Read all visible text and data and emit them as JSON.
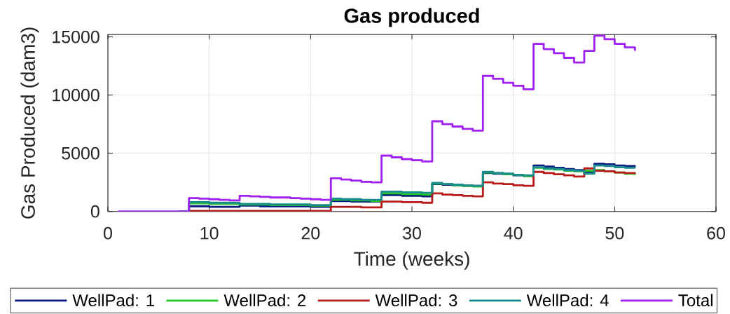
{
  "chart_data": {
    "type": "step",
    "title": "Gas produced",
    "xlabel": "Time (weeks)",
    "ylabel": "Gas Produced (dam3)",
    "x": [
      1,
      2,
      3,
      4,
      5,
      6,
      7,
      8,
      9,
      10,
      11,
      12,
      13,
      14,
      15,
      16,
      17,
      18,
      19,
      20,
      21,
      22,
      23,
      24,
      25,
      26,
      27,
      28,
      29,
      30,
      31,
      32,
      33,
      34,
      35,
      36,
      37,
      38,
      39,
      40,
      41,
      42,
      43,
      44,
      45,
      46,
      47,
      48,
      49,
      50,
      51,
      52
    ],
    "series": [
      {
        "name": "WellPad: 1",
        "color": "#0a1a80",
        "values": [
          null,
          null,
          null,
          null,
          null,
          null,
          0,
          450,
          450,
          400,
          400,
          400,
          500,
          500,
          450,
          450,
          450,
          450,
          450,
          400,
          400,
          900,
          900,
          850,
          850,
          850,
          1400,
          1400,
          1350,
          1350,
          1300,
          2350,
          2300,
          2250,
          2200,
          2200,
          3300,
          3250,
          3200,
          3100,
          3050,
          3950,
          3850,
          3750,
          3650,
          3550,
          3350,
          4100,
          4050,
          3950,
          3900,
          3850
        ]
      },
      {
        "name": "WellPad: 2",
        "color": "#22c822",
        "values": [
          null,
          null,
          null,
          null,
          null,
          null,
          0,
          700,
          700,
          650,
          650,
          650,
          600,
          600,
          600,
          550,
          550,
          550,
          550,
          500,
          500,
          1000,
          1000,
          950,
          950,
          900,
          1550,
          1550,
          1500,
          1500,
          1450,
          2400,
          2350,
          2250,
          2200,
          2150,
          3350,
          3300,
          3200,
          3150,
          3050,
          3750,
          3650,
          3600,
          3500,
          3450,
          3500,
          3550,
          3450,
          3350,
          3250,
          3150
        ]
      },
      {
        "name": "WellPad: 3",
        "color": "#b81a1a",
        "values": [
          null,
          null,
          null,
          null,
          null,
          null,
          0,
          50,
          50,
          50,
          50,
          50,
          50,
          50,
          50,
          50,
          50,
          50,
          50,
          50,
          50,
          400,
          400,
          400,
          350,
          350,
          850,
          850,
          800,
          800,
          750,
          1550,
          1450,
          1400,
          1350,
          1300,
          2500,
          2400,
          2350,
          2250,
          2200,
          3400,
          3300,
          3200,
          3100,
          3000,
          3700,
          3500,
          3450,
          3350,
          3300,
          3250
        ]
      },
      {
        "name": "WellPad: 4",
        "color": "#1a8c8c",
        "values": [
          null,
          null,
          null,
          null,
          null,
          null,
          0,
          800,
          800,
          750,
          750,
          750,
          650,
          650,
          650,
          600,
          600,
          600,
          600,
          550,
          550,
          1100,
          1050,
          1050,
          1000,
          1000,
          1700,
          1700,
          1650,
          1650,
          1600,
          2450,
          2350,
          2300,
          2250,
          2200,
          3400,
          3300,
          3250,
          3150,
          3100,
          3800,
          3700,
          3650,
          3550,
          3500,
          3250,
          3950,
          3900,
          3800,
          3750,
          3700
        ]
      },
      {
        "name": "Total",
        "color": "#a020f0",
        "values": [
          0,
          0,
          0,
          0,
          0,
          0,
          0,
          1150,
          1100,
          1050,
          1000,
          950,
          1350,
          1300,
          1250,
          1200,
          1200,
          1150,
          1100,
          1050,
          1000,
          2850,
          2750,
          2650,
          2550,
          2500,
          4800,
          4650,
          4500,
          4400,
          4300,
          7750,
          7500,
          7300,
          7100,
          6950,
          11650,
          11400,
          11050,
          10800,
          10500,
          14400,
          13950,
          13600,
          13200,
          12800,
          13800,
          15100,
          14800,
          14400,
          14100,
          13800
        ]
      }
    ],
    "xlim": [
      0,
      60
    ],
    "ylim": [
      0,
      15200
    ],
    "xticks": [
      0,
      10,
      20,
      30,
      40,
      50,
      60
    ],
    "yticks": [
      0,
      5000,
      10000,
      15000
    ],
    "grid": true,
    "legend": "bottom"
  }
}
